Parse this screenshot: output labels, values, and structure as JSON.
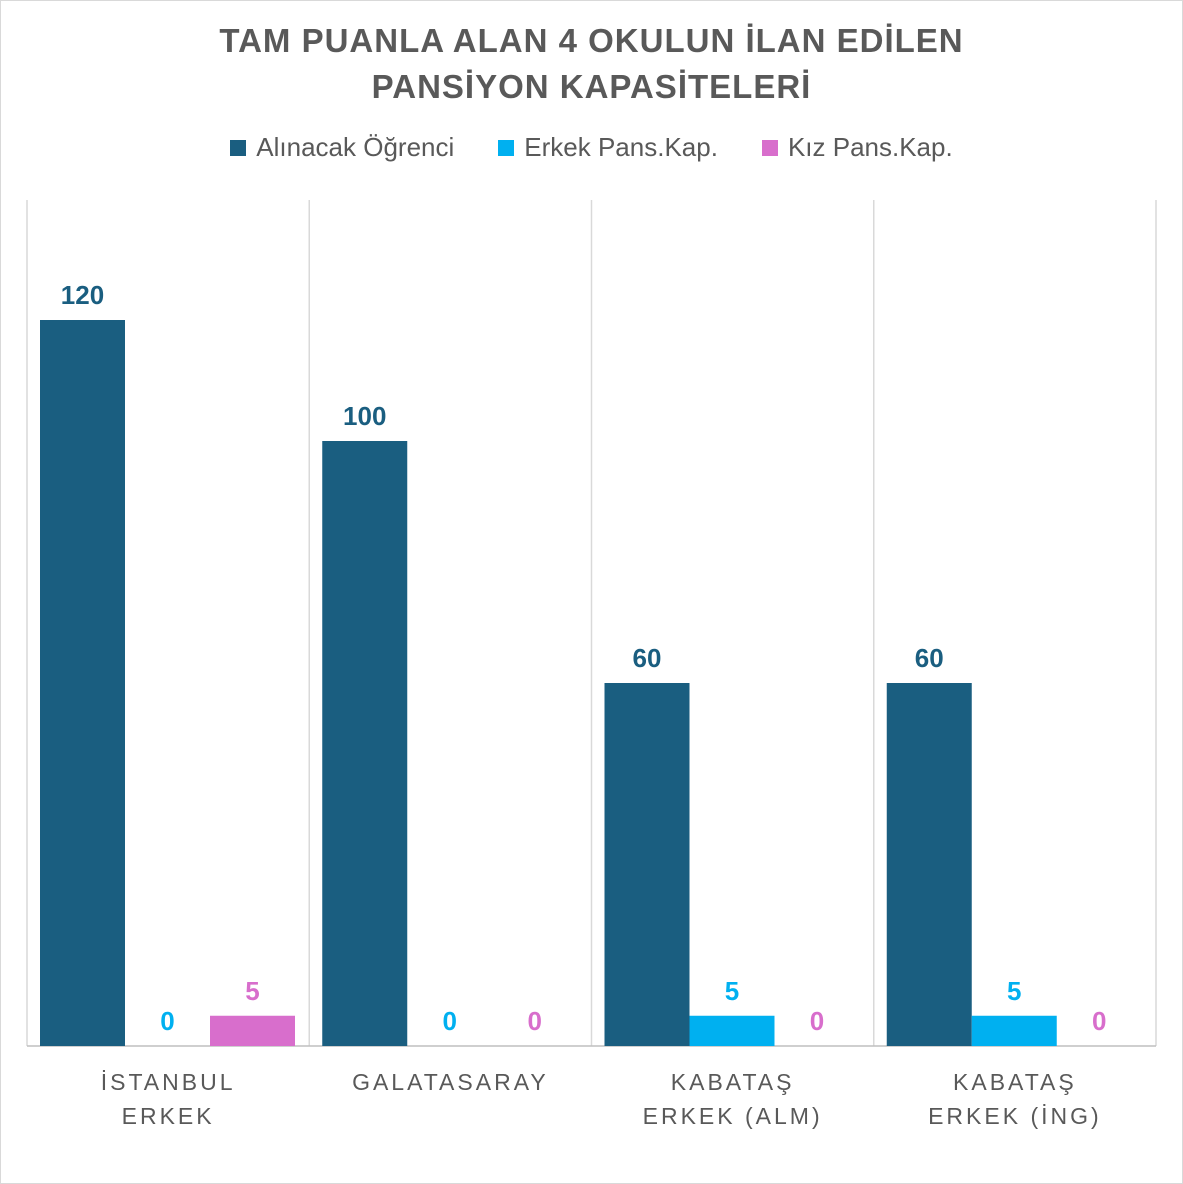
{
  "chart_data": {
    "type": "bar",
    "title": [
      "TAM PUANLA ALAN 4 OKULUN İLAN EDİLEN",
      "PANSİYON KAPASİTELERİ"
    ],
    "categories": [
      [
        "İSTANBUL",
        "ERKEK"
      ],
      [
        "GALATASARAY"
      ],
      [
        "KABATAŞ",
        "ERKEK (ALM)"
      ],
      [
        "KABATAŞ",
        "ERKEK (İNG)"
      ]
    ],
    "series": [
      {
        "name": "Alınacak Öğrenci",
        "color": "#1a5e80",
        "values": [
          120,
          100,
          60,
          60
        ]
      },
      {
        "name": "Erkek Pans.Kap.",
        "color": "#00b0f0",
        "values": [
          0,
          0,
          5,
          5
        ]
      },
      {
        "name": "Kız Pans.Kap.",
        "color": "#d86ecc",
        "values": [
          5,
          0,
          0,
          0
        ]
      }
    ],
    "ylim": [
      0,
      140
    ],
    "grid": false,
    "legend": "top",
    "data_labels": true
  }
}
